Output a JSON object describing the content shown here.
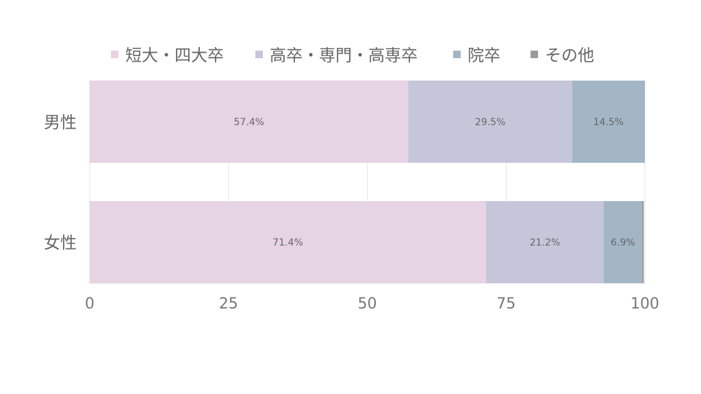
{
  "chart_data": {
    "type": "bar",
    "orientation": "horizontal",
    "stacked": true,
    "categories": [
      "男性",
      "女性"
    ],
    "series": [
      {
        "name": "短大・四大卒",
        "values": [
          57.4,
          71.4
        ],
        "labels": [
          "57.4%",
          "71.4%"
        ],
        "color": "#e6d3e3"
      },
      {
        "name": "高卒・専門・高専卒",
        "values": [
          29.5,
          21.2
        ],
        "labels": [
          "29.5%",
          "21.2%"
        ],
        "color": "#c5c6da"
      },
      {
        "name": "院卒",
        "values": [
          14.5,
          6.9
        ],
        "labels": [
          "14.5%",
          "6.9%"
        ],
        "color": "#a2b6c6"
      },
      {
        "name": "その他",
        "values": [
          1.1,
          0.3
        ],
        "labels": [
          "",
          ""
        ],
        "color": "#9a9a9a"
      }
    ],
    "xlim": [
      0,
      100
    ],
    "xticks": [
      "0",
      "25",
      "50",
      "75",
      "100"
    ],
    "grid": true,
    "legend": "top"
  }
}
